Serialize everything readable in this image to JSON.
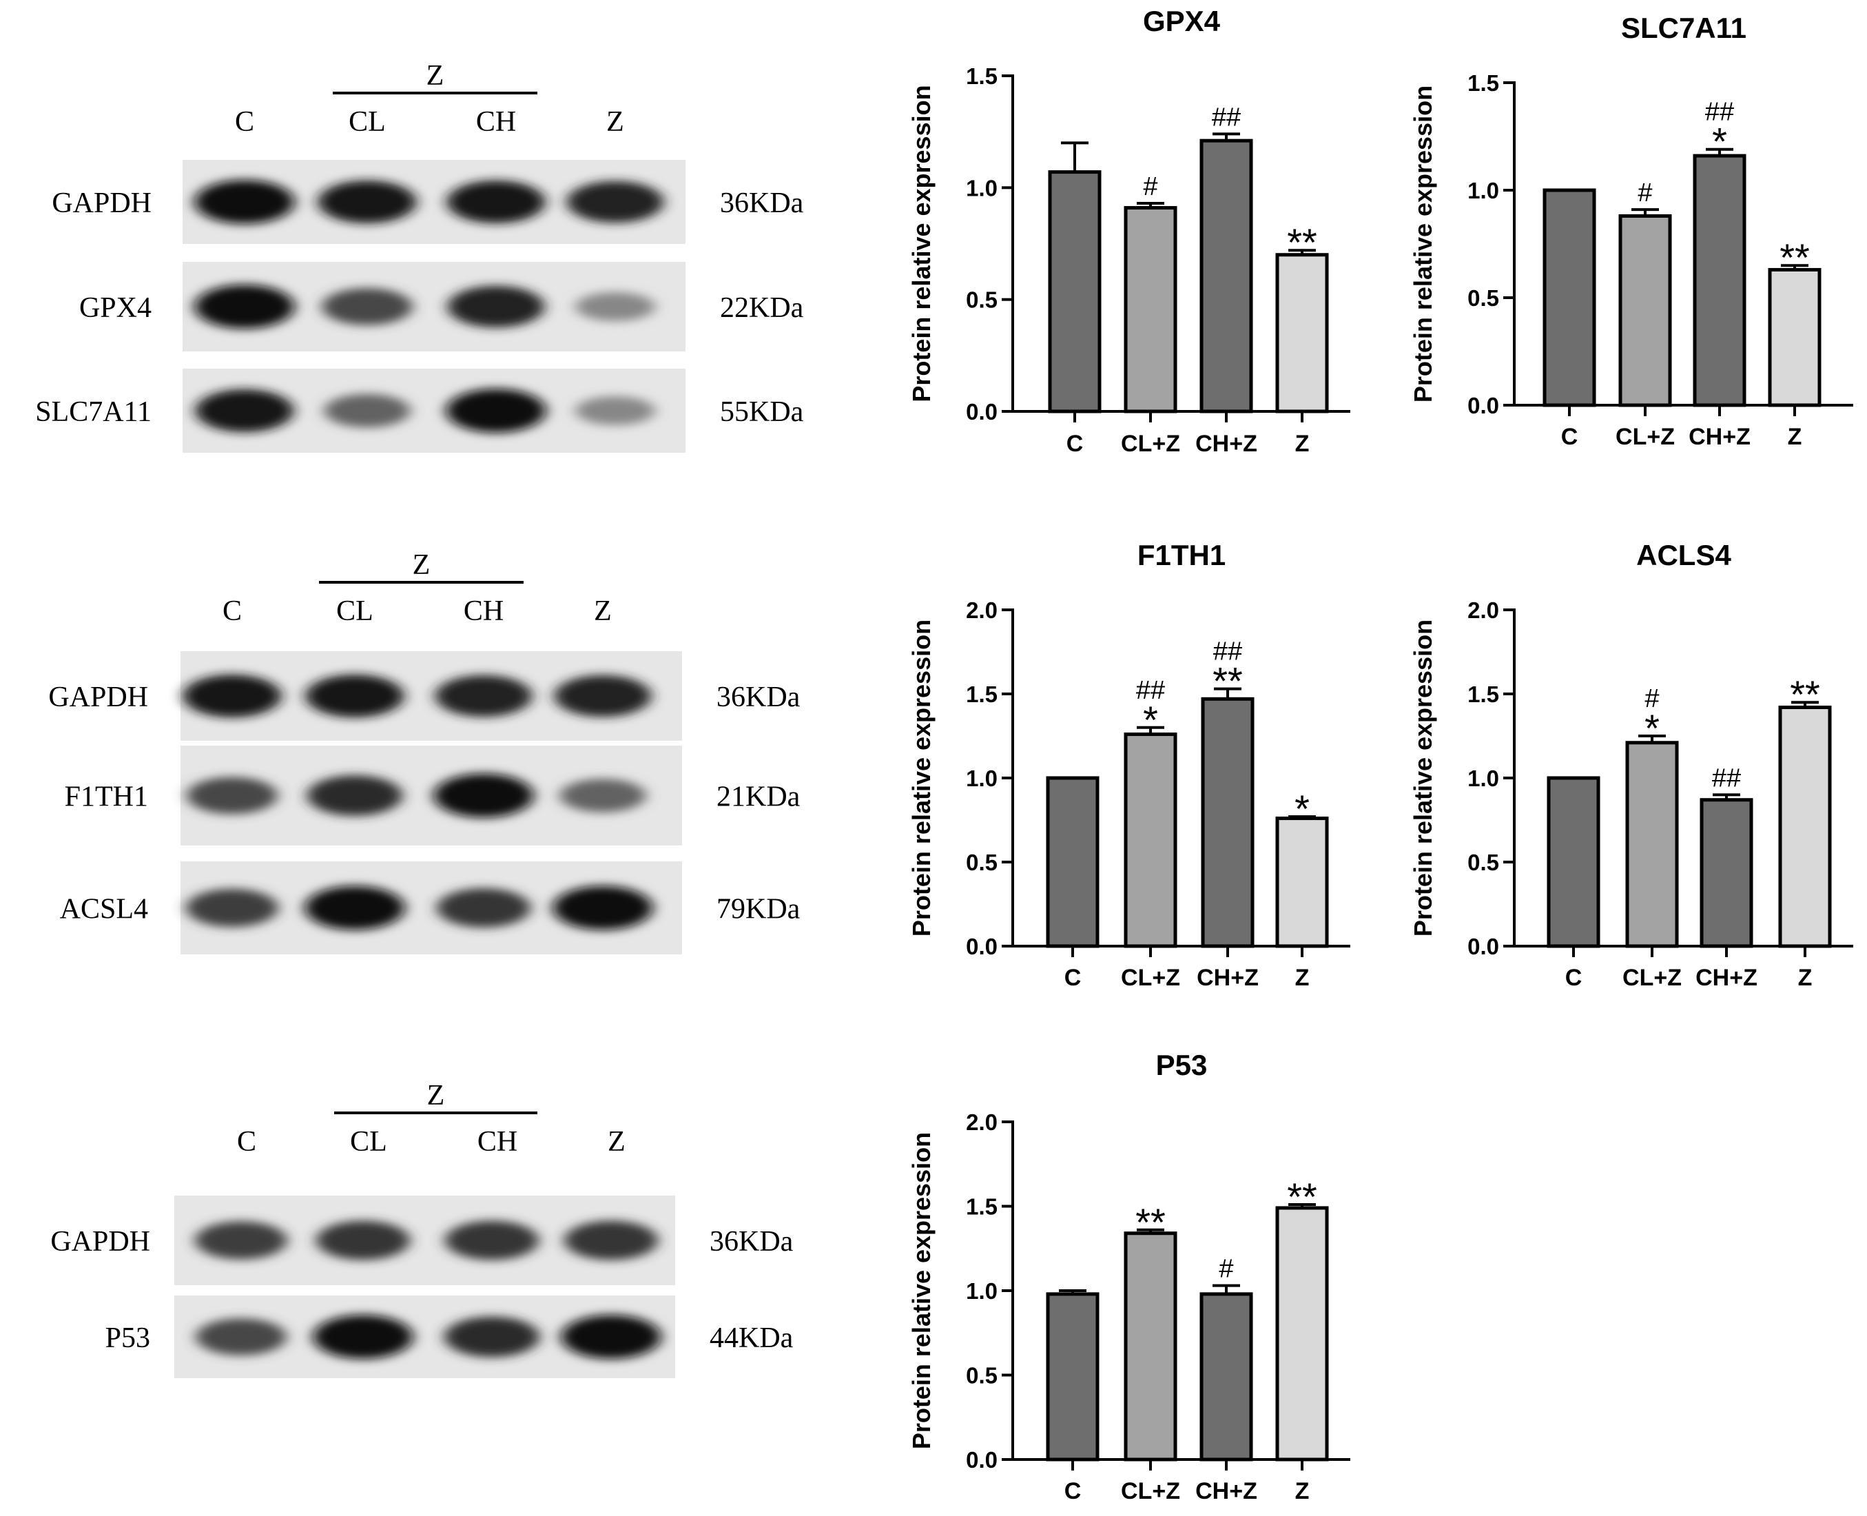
{
  "blots": [
    {
      "group_label": "Z",
      "lanes": [
        "C",
        "CL",
        "CH",
        "Z"
      ],
      "rows": [
        {
          "protein": "GAPDH",
          "size": "36KDa",
          "intensity": [
            1.0,
            0.95,
            0.95,
            0.9
          ]
        },
        {
          "protein": "GPX4",
          "size": "22KDa",
          "intensity": [
            1.0,
            0.7,
            0.9,
            0.35
          ]
        },
        {
          "protein": "SLC7A11",
          "size": "55KDa",
          "intensity": [
            0.95,
            0.55,
            1.0,
            0.35
          ]
        }
      ]
    },
    {
      "group_label": "Z",
      "lanes": [
        "C",
        "CL",
        "CH",
        "Z"
      ],
      "rows": [
        {
          "protein": "GAPDH",
          "size": "36KDa",
          "intensity": [
            0.95,
            0.95,
            0.9,
            0.9
          ]
        },
        {
          "protein": "F1TH1",
          "size": "21KDa",
          "intensity": [
            0.7,
            0.85,
            1.0,
            0.55
          ]
        },
        {
          "protein": "ACSL4",
          "size": "79KDa",
          "intensity": [
            0.75,
            1.0,
            0.8,
            1.0
          ]
        }
      ]
    },
    {
      "group_label": "Z",
      "lanes": [
        "C",
        "CL",
        "CH",
        "Z"
      ],
      "rows": [
        {
          "protein": "GAPDH",
          "size": "36KDa",
          "intensity": [
            0.75,
            0.8,
            0.8,
            0.8
          ]
        },
        {
          "protein": "P53",
          "size": "44KDa",
          "intensity": [
            0.7,
            1.0,
            0.85,
            1.0
          ]
        }
      ]
    }
  ],
  "chart_data": [
    {
      "type": "bar",
      "title": "GPX4",
      "ylabel": "Protein relative expression",
      "categories": [
        "C",
        "CL+Z",
        "CH+Z",
        "Z"
      ],
      "values": [
        1.07,
        0.91,
        1.21,
        0.7
      ],
      "errors": [
        0.13,
        0.02,
        0.03,
        0.02
      ],
      "annotations": [
        "",
        "#",
        "##",
        "**"
      ],
      "ylim": [
        0,
        1.5
      ],
      "yticks": [
        "0.0",
        "0.5",
        "1.0",
        "1.5"
      ],
      "bar_colors": [
        "#6e6e6e",
        "#a3a3a3",
        "#6e6e6e",
        "#d9d9d9"
      ]
    },
    {
      "type": "bar",
      "title": "SLC7A11",
      "ylabel": "Protein relative expression",
      "categories": [
        "C",
        "CL+Z",
        "CH+Z",
        "Z"
      ],
      "values": [
        1.0,
        0.88,
        1.16,
        0.63
      ],
      "errors": [
        0.0,
        0.03,
        0.03,
        0.02
      ],
      "annotations": [
        "",
        "#",
        "##\n*",
        "**"
      ],
      "ylim": [
        0,
        1.5
      ],
      "yticks": [
        "0.0",
        "0.5",
        "1.0",
        "1.5"
      ],
      "bar_colors": [
        "#6e6e6e",
        "#a3a3a3",
        "#6e6e6e",
        "#d9d9d9"
      ]
    },
    {
      "type": "bar",
      "title": "F1TH1",
      "ylabel": "Protein relative expression",
      "categories": [
        "C",
        "CL+Z",
        "CH+Z",
        "Z"
      ],
      "values": [
        1.0,
        1.26,
        1.47,
        0.76
      ],
      "errors": [
        0.0,
        0.04,
        0.06,
        0.01
      ],
      "annotations": [
        "",
        "##\n*",
        "##\n**",
        "*"
      ],
      "ylim": [
        0,
        2.0
      ],
      "yticks": [
        "0.0",
        "0.5",
        "1.0",
        "1.5",
        "2.0"
      ],
      "bar_colors": [
        "#6e6e6e",
        "#a3a3a3",
        "#6e6e6e",
        "#d9d9d9"
      ]
    },
    {
      "type": "bar",
      "title": "ACLS4",
      "ylabel": "Protein relative expression",
      "categories": [
        "C",
        "CL+Z",
        "CH+Z",
        "Z"
      ],
      "values": [
        1.0,
        1.21,
        0.87,
        1.42
      ],
      "errors": [
        0.0,
        0.04,
        0.03,
        0.03
      ],
      "annotations": [
        "",
        "#\n*",
        "##",
        "**"
      ],
      "ylim": [
        0,
        2.0
      ],
      "yticks": [
        "0.0",
        "0.5",
        "1.0",
        "1.5",
        "2.0"
      ],
      "bar_colors": [
        "#6e6e6e",
        "#a3a3a3",
        "#6e6e6e",
        "#d9d9d9"
      ]
    },
    {
      "type": "bar",
      "title": "P53",
      "ylabel": "Protein relative expression",
      "categories": [
        "C",
        "CL+Z",
        "CH+Z",
        "Z"
      ],
      "values": [
        0.98,
        1.34,
        0.98,
        1.49
      ],
      "errors": [
        0.02,
        0.02,
        0.05,
        0.02
      ],
      "annotations": [
        "",
        "**",
        "#",
        "**"
      ],
      "ylim": [
        0,
        2.0
      ],
      "yticks": [
        "0.0",
        "0.5",
        "1.0",
        "1.5",
        "2.0"
      ],
      "bar_colors": [
        "#6e6e6e",
        "#a3a3a3",
        "#6e6e6e",
        "#d9d9d9"
      ]
    }
  ]
}
